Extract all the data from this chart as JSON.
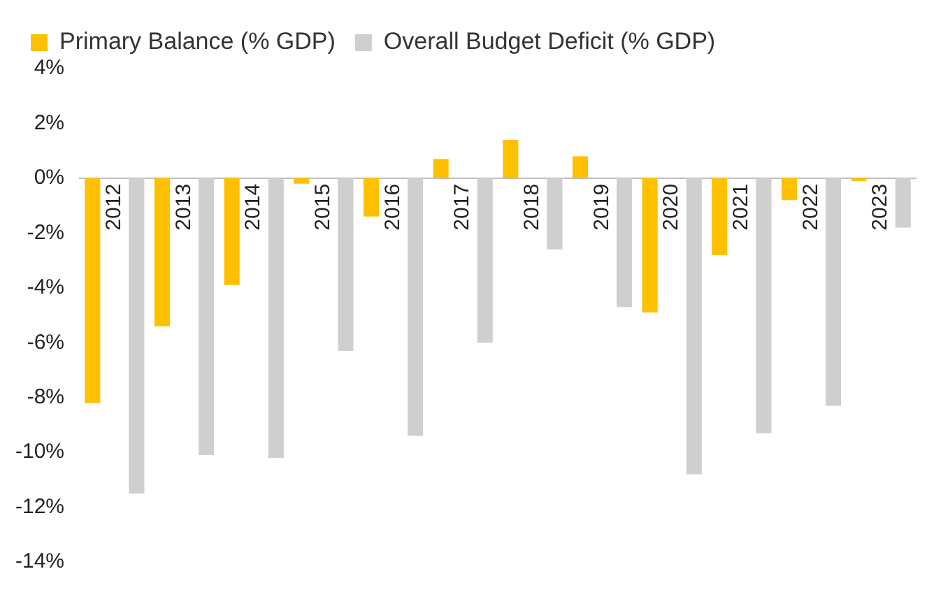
{
  "chart_data": {
    "type": "bar",
    "categories": [
      "2012",
      "2013",
      "2014",
      "2015",
      "2016",
      "2017",
      "2018",
      "2019",
      "2020",
      "2021",
      "2022",
      "2023"
    ],
    "series": [
      {
        "name": "Primary Balance (% GDP)",
        "color": "#ffc000",
        "values": [
          -8.2,
          -5.4,
          -3.9,
          -0.2,
          -1.4,
          0.7,
          1.4,
          0.8,
          -4.9,
          -2.8,
          -0.8,
          -0.1
        ]
      },
      {
        "name": "Overall Budget Deficit (% GDP)",
        "color": "#d0cece",
        "values": [
          -11.5,
          -10.1,
          -10.2,
          -6.3,
          -9.4,
          -6.0,
          -2.6,
          -4.7,
          -10.8,
          -9.3,
          -8.3,
          -1.8
        ]
      }
    ],
    "ylim": [
      -14,
      4
    ],
    "yticks": [
      {
        "value": -14,
        "label": "-14%"
      },
      {
        "value": -12,
        "label": "-12%"
      },
      {
        "value": -10,
        "label": "-10%"
      },
      {
        "value": -8,
        "label": "-8%"
      },
      {
        "value": -6,
        "label": "-6%"
      },
      {
        "value": -4,
        "label": "-4%"
      },
      {
        "value": -2,
        "label": "-2%"
      },
      {
        "value": 0,
        "label": "0%"
      },
      {
        "value": 2,
        "label": "2%"
      },
      {
        "value": 4,
        "label": "4%"
      }
    ],
    "grid": false,
    "legend": "top"
  }
}
